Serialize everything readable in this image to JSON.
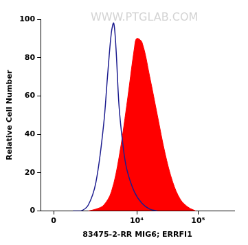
{
  "chart_data": {
    "type": "line",
    "x_label": "83475-2-RR MIG6; ERRFI1",
    "y_label": "Relative Cell Number",
    "annotations": [
      "WWW.PTGLAB.COM"
    ],
    "log": "x",
    "grid": false,
    "xlim": [
      -455,
      387000
    ],
    "xticks": [
      0,
      {
        "value": 10000,
        "label": "10⁴"
      },
      {
        "value": 100000,
        "label": "10⁵"
      }
    ],
    "ylim": [
      0,
      100
    ],
    "yticks": [
      0,
      20,
      40,
      60,
      80,
      100
    ],
    "series": [
      {
        "type": "line",
        "color": "#1c1c8f",
        "x": [
          700,
          1060,
          1500,
          2080,
          2830,
          3290,
          3820,
          4180,
          4560,
          5120,
          5920,
          6850,
          9150,
          12200,
          16300,
          21700
        ],
        "values": [
          0,
          0,
          3,
          15,
          45,
          70,
          93,
          98,
          85,
          55,
          35,
          22,
          10,
          4,
          1,
          0
        ]
      },
      {
        "type": "area",
        "color": "#ff0000",
        "x": [
          1500,
          2080,
          2830,
          3820,
          5120,
          6850,
          9150,
          10000,
          12200,
          16300,
          21700,
          29000,
          38700,
          51500,
          68700,
          91600
        ],
        "values": [
          0,
          1,
          3,
          10,
          28,
          55,
          85,
          90,
          88,
          70,
          50,
          30,
          15,
          6,
          2,
          0
        ]
      }
    ]
  }
}
